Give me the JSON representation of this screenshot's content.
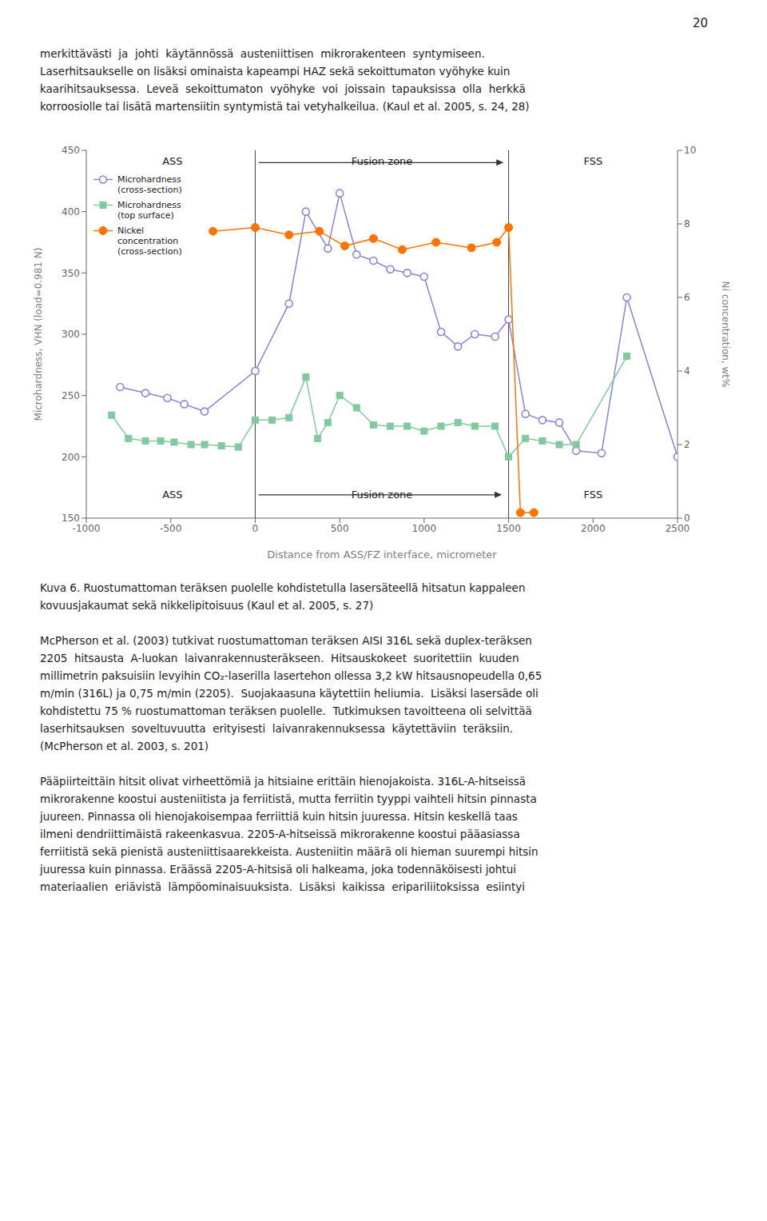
{
  "page": {
    "page_number": "20",
    "paragraphs_before": [
      "merkittävästi  ja  johti  käytännössä  austeniittisen  mikrorakenteen  syntymiseen.\nLaserhitsaukselle on lisäksi ominaista kapeampi HAZ sekä sekoittumaton vyöhyke kuin\nkaarihitsauksessa.  Leveä  sekoittumaton  vyöhyke  voi  joissain  tapauksissa  olla  herkkä\nkorroosiolle tai lisätä martensiitin syntymistä tai vetyhalkeilua. (Kaul et al. 2005, s. 24, 28)"
    ],
    "caption": "Kuva 6. Ruostumattoman teräksen puolelle kohdistetulla lasersäteellä hitsatun kappaleen\nkovuusjakaumat sekä nikkelipitoisuus (Kaul et al. 2005, s. 27)",
    "paragraphs_after": [
      "McPherson et al. (2003) tutkivat ruostumattoman teräksen AISI 316L sekä duplex-teräksen\n2205  hitsausta  A-luokan  laivanrakennusteräkseen.  Hitsauskokeet  suoritettiin  kuuden\nmillimetrin paksuisiin levyihin CO₂-laserilla lasertehon ollessa 3,2 kW hitsausnopeudella 0,65\nm/min (316L) ja 0,75 m/min (2205).  Suojakaasuna käytettiin heliumia.  Lisäksi lasersäde oli\nkohdistettu 75 % ruostumattoman teräksen puolelle.  Tutkimuksen tavoitteena oli selvittää\nlaserhitsauksen  soveltuvuutta  erityisesti  laivanrakennuksessa  käytettäviin  teräksiin.\n(McPherson et al. 2003, s. 201)",
      "Pääpiirteittäin hitsit olivat virheettömiä ja hitsiaine erittäin hienojakoista. 316L-A-hitseissä\nmikrorakenne koostui austeniitista ja ferriitistä, mutta ferriitin tyyppi vaihteli hitsin pinnasta\njuureen. Pinnassa oli hienojakoisempaa ferriittiä kuin hitsin juuressa. Hitsin keskellä taas\nilmeni dendriittimäistä rakeenkasvua. 2205-A-hitseissä mikrorakenne koostui pääasiassa\nferriitistä sekä pienistä austeniittisaarekkeista. Austeniitin määrä oli hieman suurempi hitsin\njuuressa kuin pinnassa. Eräässä 2205-A-hitsisä oli halkeama, joka todennäköisesti johtui\nmateriaalien  eriävistä  lämpöominaisuuksista.  Lisäksi  kaikissa  eripariliitoksissa  esiintyi"
    ]
  },
  "chart_data": {
    "type": "line",
    "xlabel": "Distance from ASS/FZ interface, micrometer",
    "ylabel": "Microhardness, VHN (load=0.981 N)",
    "y2label": "Ni concentration, wt%",
    "xlim": [
      -1000,
      2500
    ],
    "ylim": [
      150,
      450
    ],
    "y2lim": [
      0,
      10
    ],
    "xticks": [
      -1000,
      -500,
      0,
      500,
      1000,
      1500,
      2000,
      2500
    ],
    "yticks": [
      150,
      200,
      250,
      300,
      350,
      400,
      450
    ],
    "y2ticks": [
      0,
      2,
      4,
      6,
      8,
      10
    ],
    "grid": false,
    "legend": "upper left",
    "series": [
      {
        "name": "Microhardness\n(cross-section)",
        "color": "#8884d8",
        "marker": "open circle",
        "x": [
          -800,
          -650,
          -520,
          -420,
          -300,
          0,
          200,
          300,
          430,
          500,
          600,
          700,
          800,
          900,
          1000,
          1100,
          1200,
          1300,
          1420,
          1500,
          1600,
          1700,
          1800,
          1900,
          2050,
          2200,
          2500
        ],
        "values": [
          257,
          252,
          248,
          243,
          237,
          270,
          325,
          400,
          370,
          415,
          365,
          360,
          353,
          350,
          347,
          302,
          290,
          300,
          298,
          312,
          235,
          230,
          228,
          205,
          203,
          330,
          200
        ]
      },
      {
        "name": "Microhardness\n(top surface)",
        "color": "#82ca9d",
        "marker": "square",
        "x": [
          -850,
          -750,
          -650,
          -560,
          -480,
          -380,
          -300,
          -200,
          -100,
          0,
          100,
          200,
          300,
          370,
          430,
          500,
          600,
          700,
          800,
          900,
          1000,
          1100,
          1200,
          1300,
          1420,
          1500,
          1600,
          1700,
          1800,
          1900,
          2200
        ],
        "values": [
          234,
          215,
          213,
          213,
          212,
          210,
          210,
          209,
          208,
          230,
          230,
          232,
          265,
          215,
          228,
          250,
          240,
          226,
          225,
          225,
          221,
          225,
          228,
          225,
          225,
          200,
          215,
          213,
          210,
          210,
          282
        ]
      },
      {
        "name": "Nickel\nconcentration\n(cross-section)",
        "color": "#ff7300",
        "marker": "circle",
        "axis": "y2",
        "x": [
          -250,
          0,
          200,
          380,
          530,
          700,
          870,
          1070,
          1280,
          1430,
          1500,
          1570,
          1650
        ],
        "values": [
          7.8,
          7.9,
          7.7,
          7.8,
          7.4,
          7.6,
          7.3,
          7.5,
          7.35,
          7.5,
          7.9,
          0.15,
          0.15
        ]
      }
    ],
    "vlines": [
      0,
      1500
    ],
    "annotations": [
      {
        "text": "ASS",
        "x": -490,
        "y": 447
      },
      {
        "text": "Fusion zone",
        "x": 750,
        "y": 447
      },
      {
        "text": "FSS",
        "x": 2000,
        "y": 447
      },
      {
        "text": "ASS",
        "x": -490,
        "y": 163
      },
      {
        "text": "Fusion zone",
        "x": 750,
        "y": 163
      },
      {
        "text": "FSS",
        "x": 2000,
        "y": 163
      }
    ],
    "arrows": [
      {
        "from": [
          20,
          440
        ],
        "to": [
          1470,
          440
        ]
      },
      {
        "from": [
          20,
          169
        ],
        "to": [
          1460,
          169
        ]
      }
    ]
  }
}
